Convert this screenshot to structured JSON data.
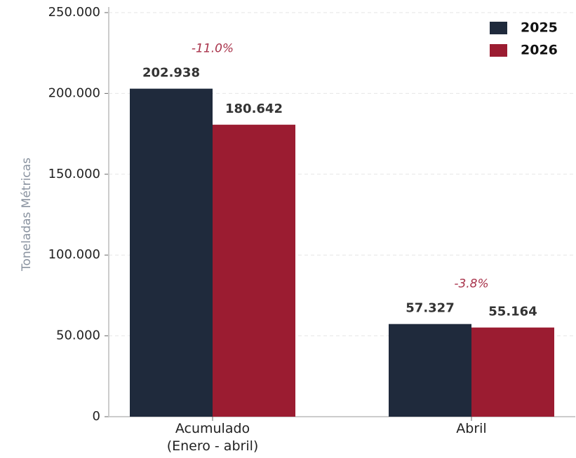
{
  "chart_data": {
    "type": "bar",
    "y_label": "Toneladas Métricas",
    "categories": [
      "Acumulado\n(Enero - abril)",
      "Abril"
    ],
    "series": [
      {
        "name": "2025",
        "color": "#1f2a3c",
        "values": [
          202938,
          57327
        ],
        "value_labels": [
          "202.938",
          "57.327"
        ]
      },
      {
        "name": "2026",
        "color": "#9b1c31",
        "values": [
          180642,
          55164
        ],
        "value_labels": [
          "180.642",
          "55.164"
        ]
      }
    ],
    "change_labels": [
      "-11.0%",
      "-3.8%"
    ],
    "ylim": [
      0,
      250000
    ],
    "yticks": [
      0,
      {
        "value": 50000,
        "label": "50.000"
      },
      {
        "value": 100000,
        "label": "100.000"
      },
      {
        "value": 150000,
        "label": "150.000"
      },
      {
        "value": 200000,
        "label": "200.000"
      },
      {
        "value": 250000,
        "label": "250.000"
      }
    ],
    "grid": true,
    "legend": "upper right"
  }
}
